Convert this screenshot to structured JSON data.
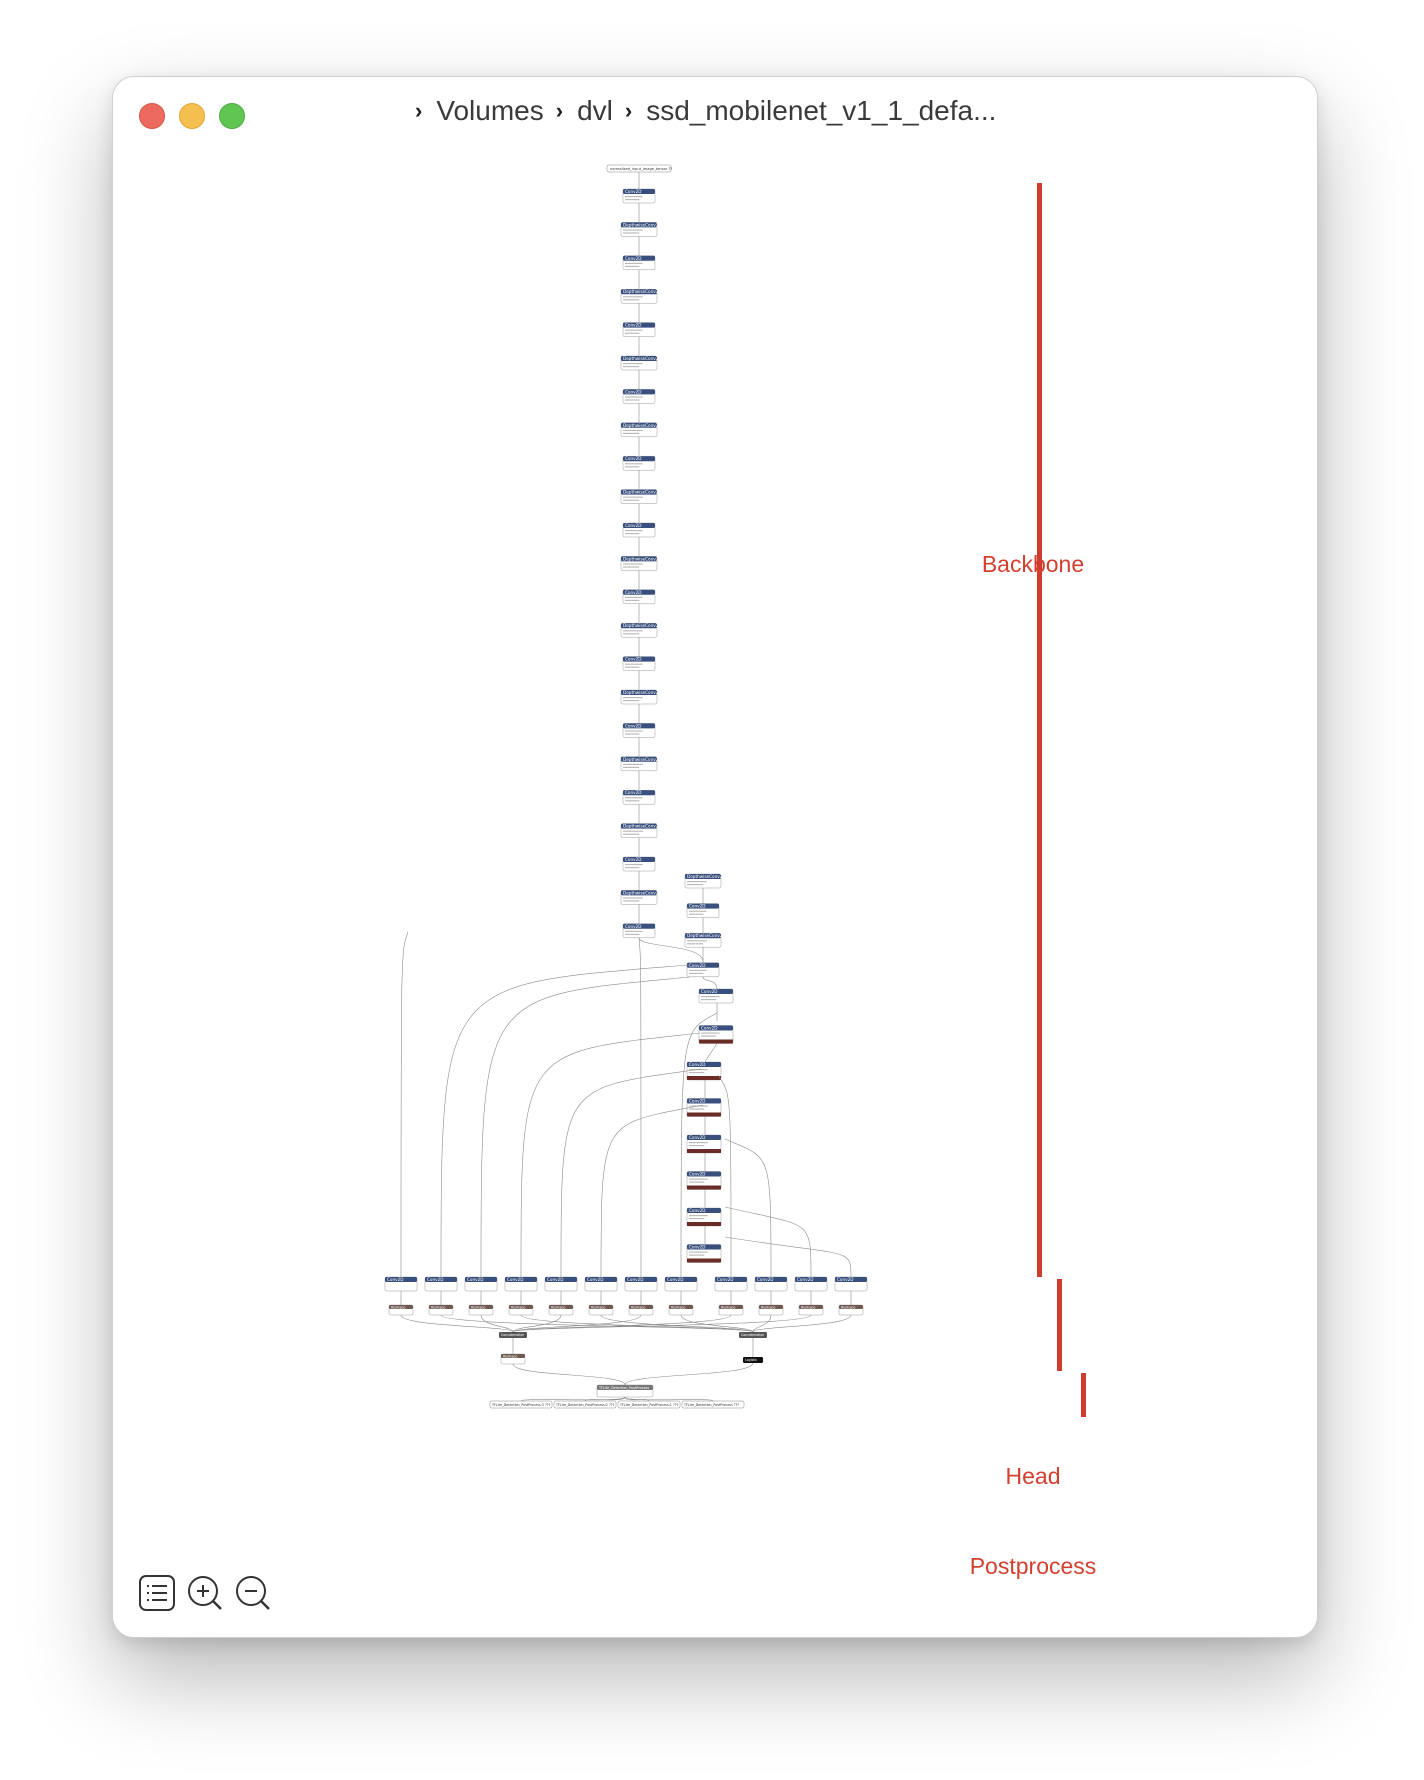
{
  "window": {
    "breadcrumb": [
      {
        "label": "Volumes"
      },
      {
        "label": "dvl"
      },
      {
        "label": "ssd_mobilenet_v1_1_defa..."
      }
    ]
  },
  "graph": {
    "input_label": "normalized_input_image_tensor ??",
    "backbone_nodes": [
      {
        "op": "Conv2D",
        "kind": "conv"
      },
      {
        "op": "DepthwiseConv2D",
        "kind": "dw"
      },
      {
        "op": "Conv2D",
        "kind": "conv"
      },
      {
        "op": "DepthwiseConv2D",
        "kind": "dw"
      },
      {
        "op": "Conv2D",
        "kind": "conv"
      },
      {
        "op": "DepthwiseConv2D",
        "kind": "dw"
      },
      {
        "op": "Conv2D",
        "kind": "conv"
      },
      {
        "op": "DepthwiseConv2D",
        "kind": "dw"
      },
      {
        "op": "Conv2D",
        "kind": "conv"
      },
      {
        "op": "DepthwiseConv2D",
        "kind": "dw"
      },
      {
        "op": "Conv2D",
        "kind": "conv"
      },
      {
        "op": "DepthwiseConv2D",
        "kind": "dw"
      },
      {
        "op": "Conv2D",
        "kind": "conv"
      },
      {
        "op": "DepthwiseConv2D",
        "kind": "dw"
      },
      {
        "op": "Conv2D",
        "kind": "conv"
      },
      {
        "op": "DepthwiseConv2D",
        "kind": "dw"
      },
      {
        "op": "Conv2D",
        "kind": "conv"
      },
      {
        "op": "DepthwiseConv2D",
        "kind": "dw"
      },
      {
        "op": "Conv2D",
        "kind": "conv"
      },
      {
        "op": "DepthwiseConv2D",
        "kind": "dw"
      },
      {
        "op": "Conv2D",
        "kind": "conv"
      },
      {
        "op": "DepthwiseConv2D",
        "kind": "dw"
      },
      {
        "op": "Conv2D",
        "kind": "conv"
      }
    ],
    "branch_nodes": [
      {
        "op": "DepthwiseConv2D",
        "kind": "dw"
      },
      {
        "op": "Conv2D",
        "kind": "conv"
      },
      {
        "op": "DepthwiseConv2D",
        "kind": "dw"
      },
      {
        "op": "Conv2D",
        "kind": "conv"
      }
    ],
    "extra_nodes": [
      {
        "op": "Conv2D",
        "kind": "conv",
        "relu": false
      },
      {
        "op": "Conv2D",
        "kind": "conv",
        "relu": true
      },
      {
        "op": "Conv2D",
        "kind": "conv",
        "relu": true
      },
      {
        "op": "Conv2D",
        "kind": "conv",
        "relu": true
      },
      {
        "op": "Conv2D",
        "kind": "conv",
        "relu": true
      },
      {
        "op": "Conv2D",
        "kind": "conv",
        "relu": true
      },
      {
        "op": "Conv2D",
        "kind": "conv",
        "relu": true
      },
      {
        "op": "Conv2D",
        "kind": "conv",
        "relu": true
      }
    ],
    "head_conv_label": "Conv2D",
    "reshape_label": "Reshape",
    "concat_label": "Concatenation",
    "logistic_label": "Logistic",
    "postprocess_label": "TFLite_Detection_PostProcess",
    "outputs": [
      "TFLite_Detection_PostProcess:3 ???",
      "TFLite_Detection_PostProcess:2 ???",
      "TFLite_Detection_PostProcess:1 ???",
      "TFLite_Detection_PostProcess ???"
    ],
    "colors": {
      "layer": "#39507e",
      "activation": "#6b2b26",
      "shape": "#6f5a52",
      "concat": "#555555",
      "edge": "#8a8a8a"
    }
  },
  "annotations": [
    {
      "label": "Backbone",
      "color": "#cf3c2d"
    },
    {
      "label": "Head",
      "color": "#cf3c2d"
    },
    {
      "label": "Postprocess",
      "color": "#cf3c2d"
    }
  ],
  "toolbar": [
    {
      "icon": "sidebar-list-icon"
    },
    {
      "icon": "zoom-in-icon"
    },
    {
      "icon": "zoom-out-icon"
    }
  ]
}
